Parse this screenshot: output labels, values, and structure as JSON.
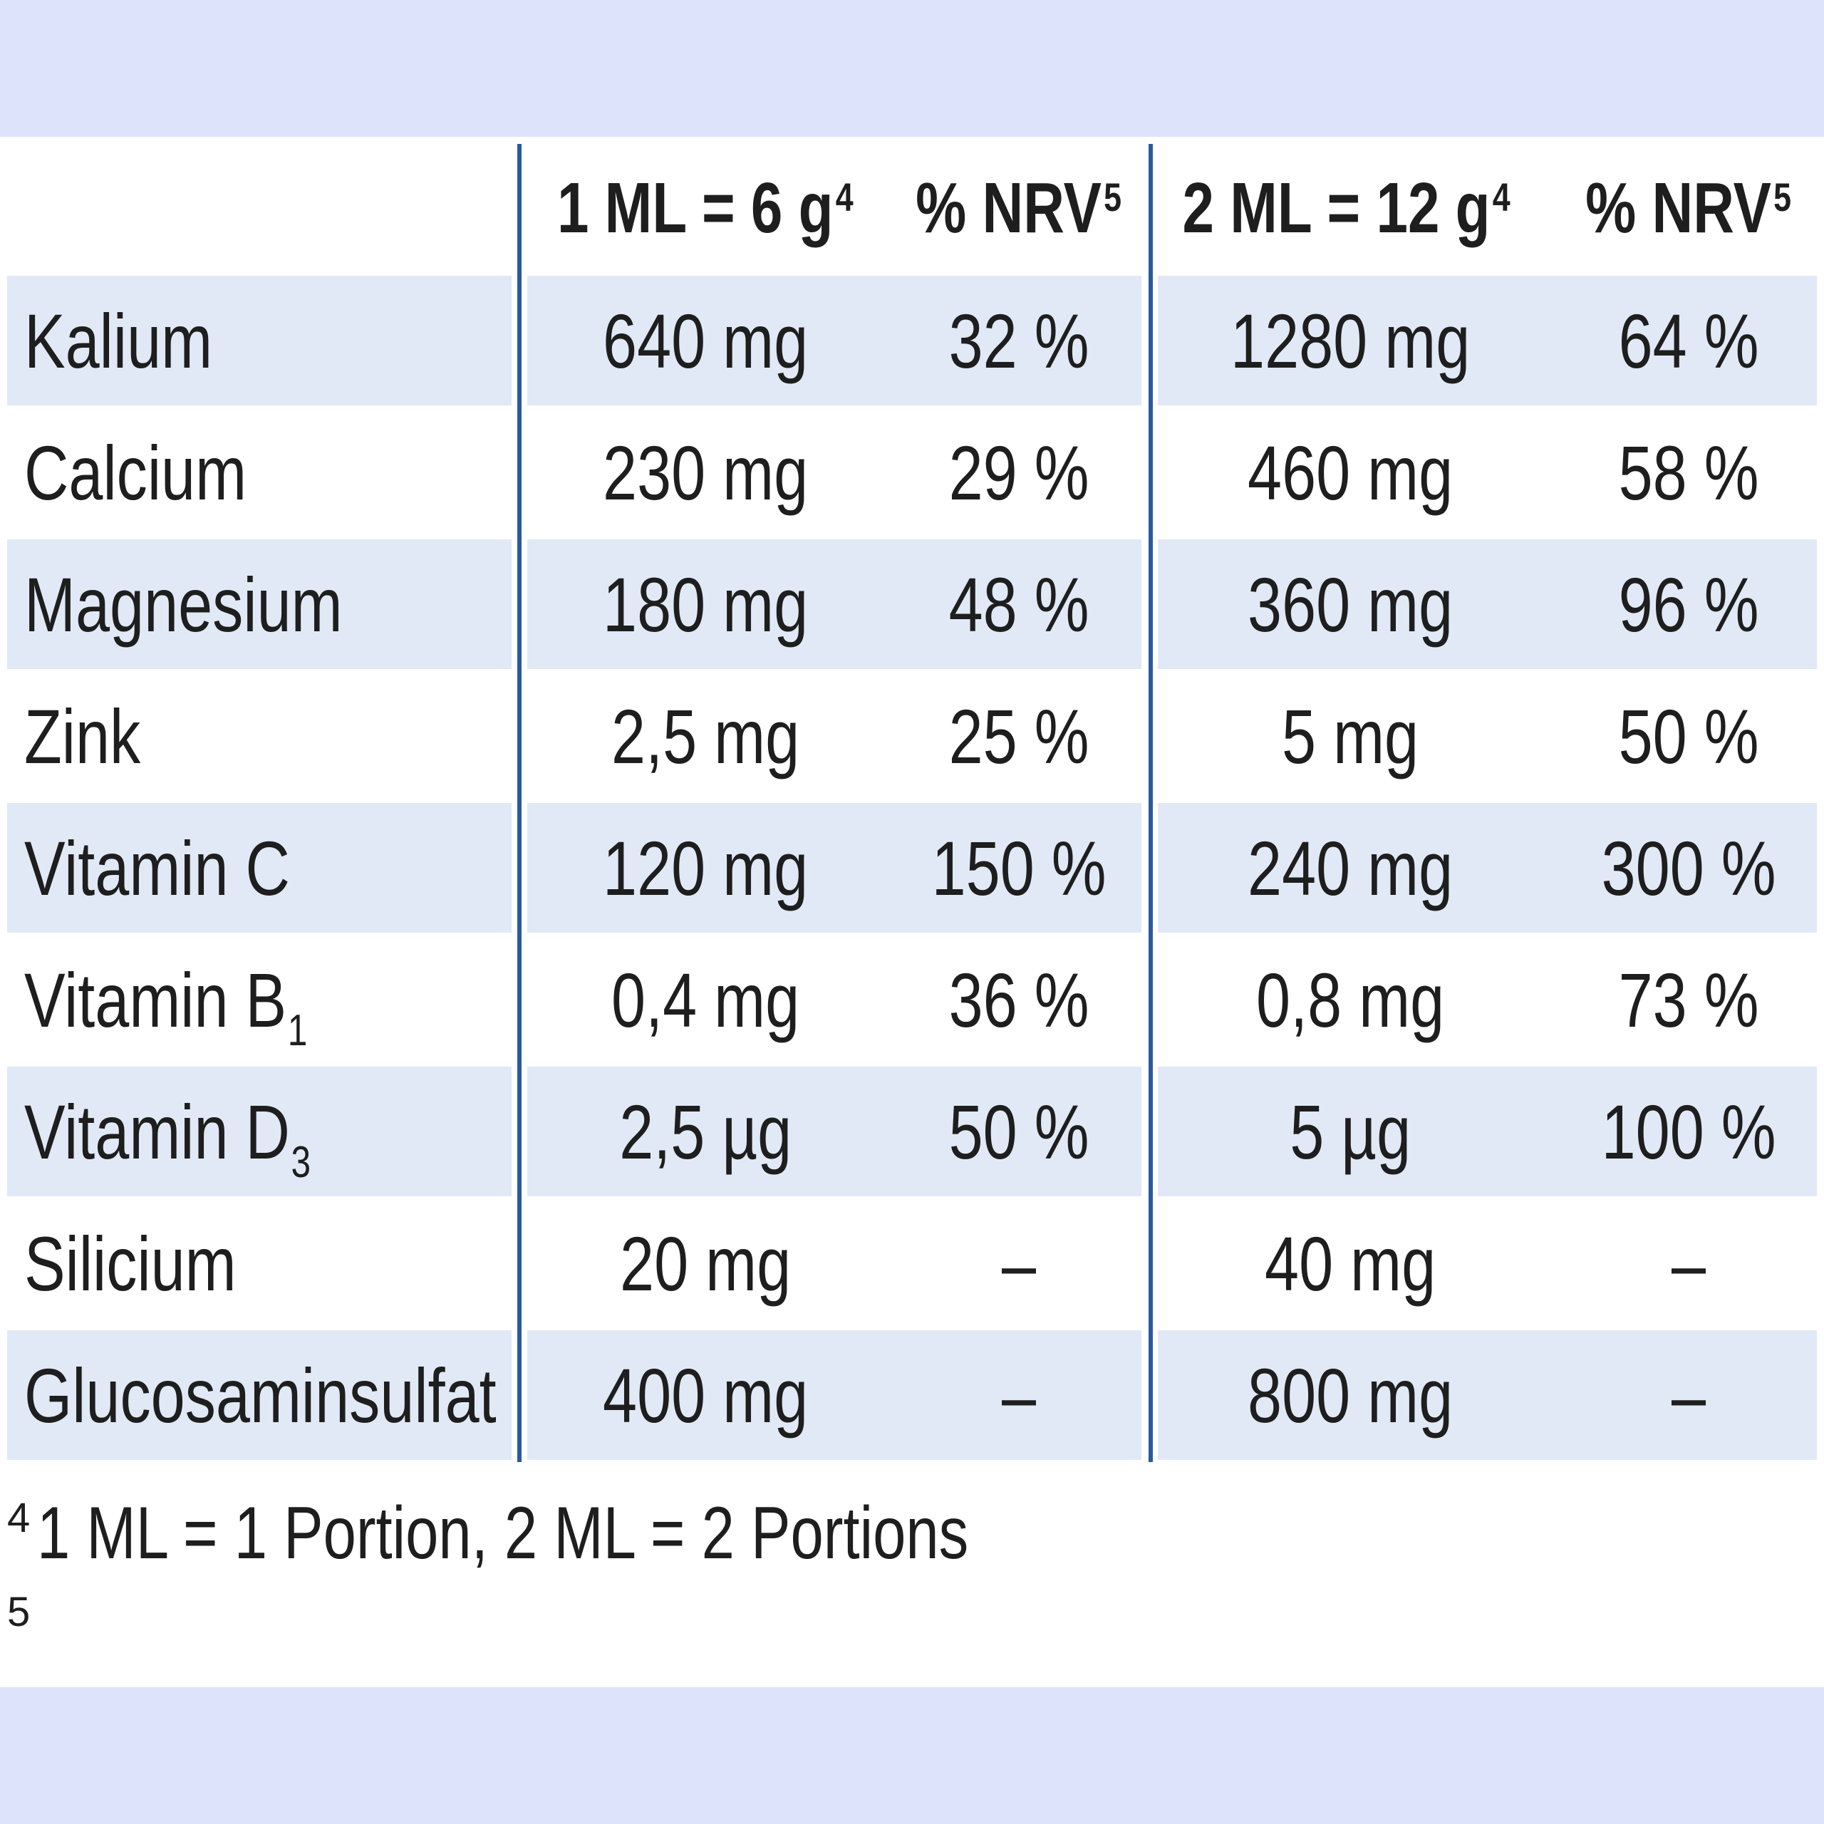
{
  "table": {
    "header": {
      "col1": {
        "text": "1 ML = 6 g",
        "sup": "4"
      },
      "col2": {
        "text": "% NRV",
        "sup": "5"
      },
      "col3": {
        "text": "2 ML = 12 g",
        "sup": "4"
      },
      "col4": {
        "text": "% NRV",
        "sup": "5"
      }
    },
    "rows": [
      {
        "name": "Kalium",
        "sub": "",
        "v1": "640 mg",
        "p1": "32 %",
        "v2": "1280 mg",
        "p2": "64 %"
      },
      {
        "name": "Calcium",
        "sub": "",
        "v1": "230 mg",
        "p1": "29 %",
        "v2": "460 mg",
        "p2": "58 %"
      },
      {
        "name": "Magnesium",
        "sub": "",
        "v1": "180 mg",
        "p1": "48 %",
        "v2": "360 mg",
        "p2": "96 %"
      },
      {
        "name": "Zink",
        "sub": "",
        "v1": "2,5 mg",
        "p1": "25 %",
        "v2": "5 mg",
        "p2": "50 %"
      },
      {
        "name": "Vitamin C",
        "sub": "",
        "v1": "120 mg",
        "p1": "150 %",
        "v2": "240 mg",
        "p2": "300 %"
      },
      {
        "name": "Vitamin B",
        "sub": "1",
        "v1": "0,4 mg",
        "p1": "36 %",
        "v2": "0,8 mg",
        "p2": "73 %"
      },
      {
        "name": "Vitamin D",
        "sub": "3",
        "v1": "2,5 µg",
        "p1": "50 %",
        "v2": "5 µg",
        "p2": "100 %"
      },
      {
        "name": "Silicium",
        "sub": "",
        "v1": "20 mg",
        "p1": "–",
        "v2": "40 mg",
        "p2": "–"
      },
      {
        "name": "Glucosaminsulfat",
        "sub": "",
        "v1": "400 mg",
        "p1": "–",
        "v2": "800 mg",
        "p2": "–"
      }
    ]
  },
  "footnotes": [
    {
      "mark": "4",
      "text": "1 ML = 1 Portion, 2 ML = 2 Portions"
    },
    {
      "mark": "5",
      "text": ""
    }
  ],
  "colors": {
    "page_background": "#dde3fb",
    "row_shade": "#e1e9f6",
    "divider": "#2a5a9c",
    "text": "#1e1e1e"
  }
}
